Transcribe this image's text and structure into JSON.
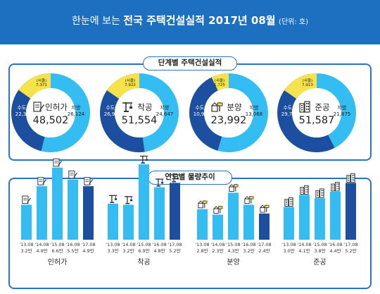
{
  "header": {
    "prefix": "한눈에 보는",
    "title": "전국 주택건설실적 2017년 08월",
    "unit": "(단위: 호)",
    "bg_color": "#1d6fc0"
  },
  "sections": {
    "stage": "단계별 주택건설실적",
    "yearly": "연도별 물량추이"
  },
  "chart_data": [
    {
      "type": "pie",
      "title": "단계별 주택건설실적",
      "charts": [
        {
          "label": "인허가",
          "total": "48,502",
          "icon": "license-icon",
          "slices": [
            {
              "name": "지방",
              "value": 26124,
              "display": "26,124"
            },
            {
              "name": "수도권",
              "value": 22378,
              "display": "22,378"
            },
            {
              "name": "(서울)",
              "value": 7371,
              "display": "7,371"
            }
          ]
        },
        {
          "label": "착공",
          "total": "51,554",
          "icon": "crane-icon",
          "slices": [
            {
              "name": "지방",
              "value": 24647,
              "display": "24,647"
            },
            {
              "name": "수도권",
              "value": 26907,
              "display": "26,907"
            },
            {
              "name": "(서울)",
              "value": 7922,
              "display": "7,922"
            }
          ]
        },
        {
          "label": "분양",
          "total": "23,992",
          "icon": "sale-icon",
          "slices": [
            {
              "name": "지방",
              "value": 13068,
              "display": "13,068"
            },
            {
              "name": "수도권",
              "value": 10924,
              "display": "10,924"
            },
            {
              "name": "(서울)",
              "value": 1725,
              "display": "1,725"
            }
          ]
        },
        {
          "label": "준공",
          "total": "51,587",
          "icon": "building-icon",
          "slices": [
            {
              "name": "지방",
              "value": 21875,
              "display": "21,875"
            },
            {
              "name": "수도권",
              "value": 29712,
              "display": "29,712"
            },
            {
              "name": "(서울)",
              "value": 7913,
              "display": "7,913"
            }
          ]
        }
      ],
      "colors": {
        "지방": "#33bdf2",
        "수도권": "#1d4fa0",
        "(서울)": "#f6e24a"
      }
    },
    {
      "type": "bar",
      "title": "연도별 물량추이",
      "groups": [
        {
          "name": "인허가",
          "icon": "license-icon",
          "categories": [
            "'13.08",
            "'14.08",
            "'15.08",
            "'16.08",
            "'17.08"
          ],
          "values": [
            3.2,
            4.9,
            6.6,
            5.5,
            4.9
          ],
          "labels": [
            "3.2만",
            "4.9만",
            "6.6만",
            "5.5만",
            "4.9만"
          ]
        },
        {
          "name": "착공",
          "icon": "crane-icon",
          "categories": [
            "'13.08",
            "'14.08",
            "'15.08",
            "'16.08",
            "'17.08"
          ],
          "values": [
            3.3,
            3.2,
            6.9,
            4.8,
            5.2
          ],
          "labels": [
            "3.3만",
            "3.2만",
            "6.9만",
            "4.8만",
            "5.2만"
          ]
        },
        {
          "name": "분양",
          "icon": "sale-icon",
          "categories": [
            "'13.08",
            "'14.08",
            "'15.08",
            "'16.08",
            "'17.08"
          ],
          "values": [
            2.8,
            2.3,
            4.3,
            3.2,
            2.4
          ],
          "labels": [
            "2.8만",
            "2.3만",
            "4.3만",
            "3.2만",
            "2.4만"
          ]
        },
        {
          "name": "준공",
          "icon": "building-icon",
          "categories": [
            "'13.08",
            "'14.08",
            "'15.08",
            "'16.08",
            "'17.08"
          ],
          "values": [
            3.0,
            4.1,
            3.8,
            4.4,
            5.2
          ],
          "labels": [
            "3.0만",
            "4.1만",
            "3.8만",
            "4.4만",
            "5.2만"
          ]
        }
      ],
      "colors": {
        "past": "#33bdf2",
        "current": "#1d4fa0"
      }
    }
  ]
}
